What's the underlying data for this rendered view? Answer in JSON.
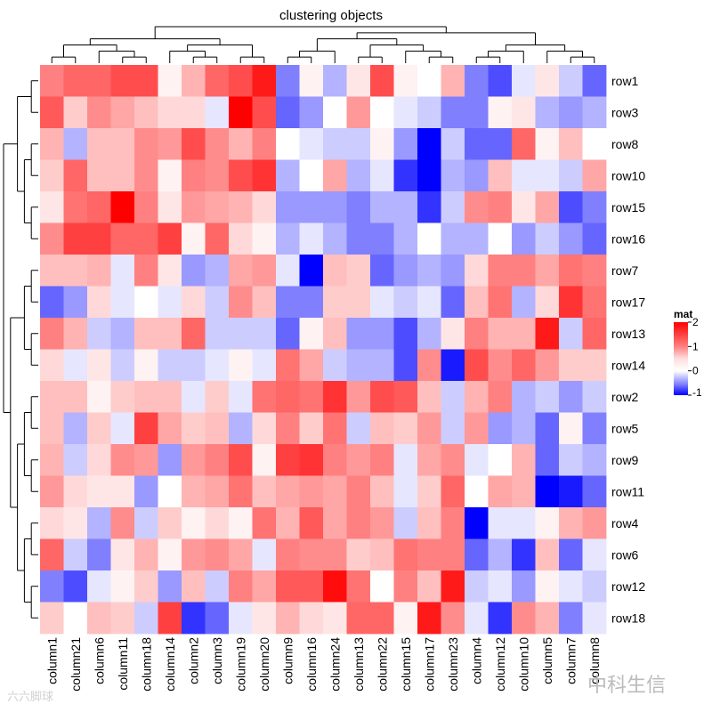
{
  "chart_data": {
    "type": "heatmap",
    "title": "clustering objects",
    "rows": [
      "row1",
      "row3",
      "row8",
      "row10",
      "row15",
      "row16",
      "row7",
      "row17",
      "row13",
      "row14",
      "row2",
      "row5",
      "row9",
      "row11",
      "row4",
      "row6",
      "row12",
      "row18"
    ],
    "columns": [
      "column1",
      "column21",
      "column6",
      "column11",
      "column18",
      "column14",
      "column2",
      "column3",
      "column19",
      "column20",
      "column9",
      "column16",
      "column24",
      "column13",
      "column22",
      "column15",
      "column17",
      "column23",
      "column4",
      "column12",
      "column10",
      "column5",
      "column7",
      "column8"
    ],
    "values": [
      [
        1.0,
        1.2,
        1.2,
        1.4,
        1.4,
        0.1,
        0.6,
        1.2,
        1.4,
        1.8,
        -0.5,
        0.1,
        -0.3,
        0.2,
        1.4,
        0.1,
        0.0,
        0.6,
        -0.5,
        -0.7,
        -0.1,
        0.2,
        -0.2,
        -0.6
      ],
      [
        1.3,
        0.4,
        0.9,
        0.7,
        0.5,
        0.3,
        0.3,
        -0.1,
        2.0,
        1.4,
        -0.6,
        -0.4,
        0.0,
        0.8,
        0.0,
        -0.1,
        -0.2,
        -0.5,
        -0.5,
        0.1,
        0.2,
        -0.3,
        -0.4,
        -0.3
      ],
      [
        0.6,
        -0.3,
        0.5,
        0.5,
        0.9,
        0.8,
        1.4,
        0.9,
        0.6,
        1.0,
        0.0,
        -0.1,
        -0.2,
        -0.2,
        0.1,
        -0.4,
        -1.0,
        -0.2,
        -0.6,
        -0.6,
        1.2,
        0.1,
        0.5,
        0.0
      ],
      [
        0.4,
        1.2,
        0.5,
        0.5,
        0.9,
        0.1,
        1.0,
        0.9,
        1.4,
        1.6,
        -0.3,
        0.0,
        0.7,
        -0.3,
        -0.1,
        -0.8,
        -1.0,
        -0.3,
        -0.4,
        0.5,
        -0.1,
        -0.1,
        -0.2,
        0.7
      ],
      [
        0.2,
        1.1,
        1.2,
        2.0,
        1.0,
        0.2,
        0.8,
        0.7,
        0.6,
        0.3,
        -0.4,
        -0.4,
        -0.4,
        -0.5,
        -0.3,
        -0.3,
        -0.8,
        -0.2,
        0.9,
        1.0,
        0.2,
        0.7,
        -0.7,
        -0.5
      ],
      [
        0.9,
        1.5,
        1.5,
        1.2,
        1.2,
        1.5,
        0.1,
        1.2,
        0.3,
        0.1,
        -0.3,
        -0.1,
        -0.3,
        -0.5,
        -0.5,
        -0.3,
        0.0,
        -0.3,
        -0.3,
        0.0,
        -0.4,
        -0.2,
        -0.4,
        -0.6
      ],
      [
        0.5,
        0.5,
        0.6,
        -0.1,
        1.0,
        0.2,
        -0.4,
        -0.3,
        0.7,
        0.8,
        -0.1,
        -1.0,
        0.5,
        0.4,
        -0.6,
        -0.4,
        -0.3,
        -0.4,
        0.3,
        1.0,
        1.0,
        0.7,
        1.1,
        1.0
      ],
      [
        -0.6,
        -0.4,
        0.3,
        -0.1,
        0.0,
        -0.1,
        0.3,
        -0.2,
        0.9,
        0.5,
        -0.5,
        -0.5,
        0.4,
        0.4,
        -0.1,
        -0.2,
        -0.1,
        -0.6,
        0.5,
        1.1,
        -0.3,
        0.3,
        1.6,
        1.1
      ],
      [
        1.0,
        0.6,
        -0.2,
        -0.3,
        0.5,
        0.5,
        1.2,
        -0.2,
        -0.2,
        -0.2,
        -0.6,
        0.1,
        0.5,
        -0.4,
        -0.4,
        -0.7,
        -0.3,
        0.2,
        1.0,
        0.6,
        0.6,
        1.8,
        -0.2,
        1.2
      ],
      [
        0.3,
        -0.1,
        0.2,
        -0.2,
        0.1,
        -0.2,
        -0.2,
        -0.1,
        0.1,
        -0.1,
        1.1,
        0.7,
        -0.2,
        -0.3,
        -0.3,
        -0.7,
        0.9,
        -0.9,
        1.4,
        0.9,
        1.2,
        0.8,
        0.4,
        0.4
      ],
      [
        0.5,
        0.5,
        0.1,
        0.4,
        0.5,
        0.5,
        -0.1,
        0.4,
        -0.1,
        1.1,
        1.2,
        1.1,
        1.6,
        0.8,
        1.4,
        1.3,
        0.5,
        -0.2,
        0.6,
        1.0,
        -0.3,
        -0.2,
        -0.4,
        -0.2
      ],
      [
        0.5,
        -0.3,
        0.4,
        -0.1,
        1.5,
        0.7,
        0.4,
        0.5,
        -0.3,
        0.3,
        1.0,
        0.4,
        1.1,
        -0.2,
        0.5,
        0.4,
        0.8,
        -0.2,
        0.8,
        -0.4,
        -0.3,
        -0.6,
        0.1,
        -0.5
      ],
      [
        0.6,
        -0.2,
        0.3,
        0.9,
        0.8,
        -0.4,
        0.8,
        1.0,
        1.4,
        0.1,
        1.5,
        1.6,
        1.0,
        0.8,
        1.0,
        -0.1,
        0.7,
        0.9,
        -0.1,
        0.0,
        0.6,
        -0.6,
        -0.2,
        -0.3
      ],
      [
        0.8,
        0.3,
        0.2,
        0.2,
        -0.4,
        0.0,
        0.6,
        0.7,
        1.1,
        0.5,
        0.7,
        0.8,
        0.7,
        1.0,
        0.5,
        -0.1,
        0.4,
        1.2,
        0.0,
        0.7,
        0.6,
        -1.0,
        -0.9,
        -0.6
      ],
      [
        0.3,
        0.2,
        -0.3,
        0.9,
        -0.2,
        0.4,
        0.1,
        0.3,
        0.1,
        1.1,
        0.6,
        1.3,
        0.7,
        1.0,
        0.8,
        -0.2,
        0.5,
        1.0,
        -1.0,
        -0.1,
        -0.1,
        0.1,
        0.6,
        0.8
      ],
      [
        1.2,
        -0.2,
        -0.5,
        0.2,
        0.6,
        0.1,
        0.8,
        0.9,
        0.7,
        -0.1,
        1.0,
        0.9,
        0.9,
        0.4,
        0.5,
        1.1,
        1.0,
        1.0,
        -0.6,
        -0.3,
        -0.8,
        0.5,
        -0.6,
        -0.1
      ],
      [
        -0.5,
        -0.7,
        -0.1,
        0.1,
        0.4,
        -0.4,
        0.5,
        -0.2,
        1.0,
        0.7,
        1.3,
        1.3,
        1.9,
        1.1,
        0.0,
        1.0,
        0.5,
        1.8,
        -0.2,
        -0.1,
        -0.4,
        0.1,
        -0.1,
        -0.2
      ],
      [
        0.4,
        0.0,
        0.5,
        0.4,
        -0.2,
        1.5,
        -0.8,
        -0.6,
        -0.1,
        0.2,
        0.6,
        0.3,
        0.2,
        1.2,
        1.2,
        0.1,
        1.8,
        0.9,
        -0.1,
        -0.8,
        0.9,
        0.6,
        -0.5,
        -0.1
      ]
    ],
    "legend": {
      "title": "mat",
      "ticks": [
        2,
        1,
        0,
        -1
      ],
      "range": [
        -1,
        2
      ],
      "placement": "right",
      "colors": {
        "low": "#0000ff",
        "mid": "#ffffff",
        "high": "#ff0000"
      }
    },
    "row_dendrogram_order": "row1,row3 | row8,row10,row15,row16 | row7,row17 | row13,row14 | row2,row5,row9,row11,row4,row6,row12,row18",
    "column_dendrogram": true,
    "row_dendrogram": true
  },
  "watermarks": {
    "left": "六六脚球",
    "right": "中科生信"
  }
}
